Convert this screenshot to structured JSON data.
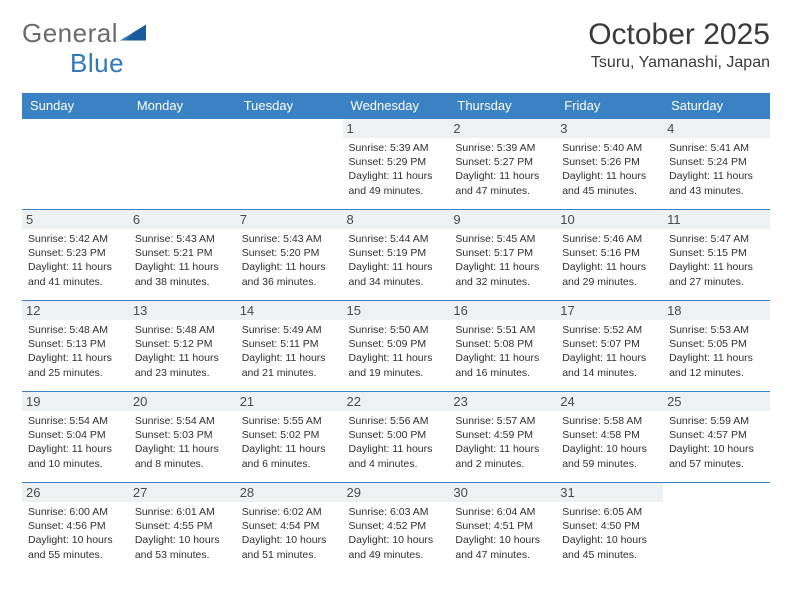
{
  "brand": {
    "part1": "General",
    "part2": "Blue"
  },
  "title": "October 2025",
  "location": "Tsuru, Yamanashi, Japan",
  "colors": {
    "header_bg": "#3b82c4",
    "header_text": "#ffffff",
    "daynum_bg": "#eef1f4",
    "border": "#3b82c4",
    "body_text": "#2f2f2f",
    "logo_gray": "#6b6b6b",
    "logo_blue": "#2f78bd"
  },
  "weekdays": [
    "Sunday",
    "Monday",
    "Tuesday",
    "Wednesday",
    "Thursday",
    "Friday",
    "Saturday"
  ],
  "weeks": [
    [
      {
        "blank": true
      },
      {
        "blank": true
      },
      {
        "blank": true
      },
      {
        "day": "1",
        "sunrise": "5:39 AM",
        "sunset": "5:29 PM",
        "daylight": "11 hours and 49 minutes."
      },
      {
        "day": "2",
        "sunrise": "5:39 AM",
        "sunset": "5:27 PM",
        "daylight": "11 hours and 47 minutes."
      },
      {
        "day": "3",
        "sunrise": "5:40 AM",
        "sunset": "5:26 PM",
        "daylight": "11 hours and 45 minutes."
      },
      {
        "day": "4",
        "sunrise": "5:41 AM",
        "sunset": "5:24 PM",
        "daylight": "11 hours and 43 minutes."
      }
    ],
    [
      {
        "day": "5",
        "sunrise": "5:42 AM",
        "sunset": "5:23 PM",
        "daylight": "11 hours and 41 minutes."
      },
      {
        "day": "6",
        "sunrise": "5:43 AM",
        "sunset": "5:21 PM",
        "daylight": "11 hours and 38 minutes."
      },
      {
        "day": "7",
        "sunrise": "5:43 AM",
        "sunset": "5:20 PM",
        "daylight": "11 hours and 36 minutes."
      },
      {
        "day": "8",
        "sunrise": "5:44 AM",
        "sunset": "5:19 PM",
        "daylight": "11 hours and 34 minutes."
      },
      {
        "day": "9",
        "sunrise": "5:45 AM",
        "sunset": "5:17 PM",
        "daylight": "11 hours and 32 minutes."
      },
      {
        "day": "10",
        "sunrise": "5:46 AM",
        "sunset": "5:16 PM",
        "daylight": "11 hours and 29 minutes."
      },
      {
        "day": "11",
        "sunrise": "5:47 AM",
        "sunset": "5:15 PM",
        "daylight": "11 hours and 27 minutes."
      }
    ],
    [
      {
        "day": "12",
        "sunrise": "5:48 AM",
        "sunset": "5:13 PM",
        "daylight": "11 hours and 25 minutes."
      },
      {
        "day": "13",
        "sunrise": "5:48 AM",
        "sunset": "5:12 PM",
        "daylight": "11 hours and 23 minutes."
      },
      {
        "day": "14",
        "sunrise": "5:49 AM",
        "sunset": "5:11 PM",
        "daylight": "11 hours and 21 minutes."
      },
      {
        "day": "15",
        "sunrise": "5:50 AM",
        "sunset": "5:09 PM",
        "daylight": "11 hours and 19 minutes."
      },
      {
        "day": "16",
        "sunrise": "5:51 AM",
        "sunset": "5:08 PM",
        "daylight": "11 hours and 16 minutes."
      },
      {
        "day": "17",
        "sunrise": "5:52 AM",
        "sunset": "5:07 PM",
        "daylight": "11 hours and 14 minutes."
      },
      {
        "day": "18",
        "sunrise": "5:53 AM",
        "sunset": "5:05 PM",
        "daylight": "11 hours and 12 minutes."
      }
    ],
    [
      {
        "day": "19",
        "sunrise": "5:54 AM",
        "sunset": "5:04 PM",
        "daylight": "11 hours and 10 minutes."
      },
      {
        "day": "20",
        "sunrise": "5:54 AM",
        "sunset": "5:03 PM",
        "daylight": "11 hours and 8 minutes."
      },
      {
        "day": "21",
        "sunrise": "5:55 AM",
        "sunset": "5:02 PM",
        "daylight": "11 hours and 6 minutes."
      },
      {
        "day": "22",
        "sunrise": "5:56 AM",
        "sunset": "5:00 PM",
        "daylight": "11 hours and 4 minutes."
      },
      {
        "day": "23",
        "sunrise": "5:57 AM",
        "sunset": "4:59 PM",
        "daylight": "11 hours and 2 minutes."
      },
      {
        "day": "24",
        "sunrise": "5:58 AM",
        "sunset": "4:58 PM",
        "daylight": "10 hours and 59 minutes."
      },
      {
        "day": "25",
        "sunrise": "5:59 AM",
        "sunset": "4:57 PM",
        "daylight": "10 hours and 57 minutes."
      }
    ],
    [
      {
        "day": "26",
        "sunrise": "6:00 AM",
        "sunset": "4:56 PM",
        "daylight": "10 hours and 55 minutes."
      },
      {
        "day": "27",
        "sunrise": "6:01 AM",
        "sunset": "4:55 PM",
        "daylight": "10 hours and 53 minutes."
      },
      {
        "day": "28",
        "sunrise": "6:02 AM",
        "sunset": "4:54 PM",
        "daylight": "10 hours and 51 minutes."
      },
      {
        "day": "29",
        "sunrise": "6:03 AM",
        "sunset": "4:52 PM",
        "daylight": "10 hours and 49 minutes."
      },
      {
        "day": "30",
        "sunrise": "6:04 AM",
        "sunset": "4:51 PM",
        "daylight": "10 hours and 47 minutes."
      },
      {
        "day": "31",
        "sunrise": "6:05 AM",
        "sunset": "4:50 PM",
        "daylight": "10 hours and 45 minutes."
      },
      {
        "blank": true
      }
    ]
  ],
  "labels": {
    "sunrise": "Sunrise:",
    "sunset": "Sunset:",
    "daylight": "Daylight:"
  }
}
